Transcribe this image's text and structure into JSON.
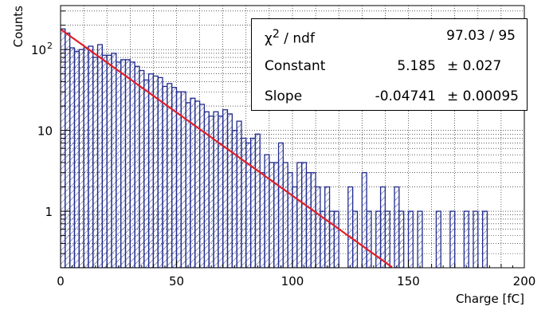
{
  "chart_data": {
    "type": "histogram",
    "xlabel": "Charge [fC]",
    "ylabel": "Counts",
    "xlim": [
      0,
      200
    ],
    "ylim": [
      0.2,
      350
    ],
    "yscale": "log",
    "grid": true,
    "bin_width": 2,
    "x_ticks": [
      "0",
      "50",
      "100",
      "150",
      "200"
    ],
    "y_ticks": [
      {
        "value": 1,
        "label": "1"
      },
      {
        "value": 10,
        "label": "10"
      },
      {
        "value": 100,
        "label": "10",
        "sup": "2"
      }
    ],
    "bins_start": 0,
    "counts": [
      180,
      160,
      105,
      95,
      100,
      105,
      110,
      80,
      115,
      85,
      85,
      90,
      70,
      75,
      75,
      70,
      62,
      55,
      42,
      50,
      47,
      45,
      35,
      38,
      34,
      30,
      30,
      22,
      25,
      23,
      21,
      17,
      15,
      17,
      15,
      18,
      16,
      10,
      13,
      8,
      7,
      8,
      9,
      3,
      5,
      4,
      4,
      7,
      4,
      3,
      2,
      4,
      4,
      3,
      3,
      2,
      1,
      2,
      1,
      1,
      0,
      0,
      2,
      1,
      0,
      3,
      1,
      0,
      1,
      2,
      1,
      0,
      2,
      1,
      0,
      1,
      0,
      1,
      0,
      0,
      0,
      1,
      0,
      0,
      1,
      0,
      0,
      1,
      0,
      1,
      0,
      1
    ],
    "fit": {
      "function": "expo",
      "constant": 5.185,
      "slope": -0.04741,
      "x_start": 0,
      "x_end": 143,
      "color": "#e0202a"
    },
    "hist_color": "#1f2a8c"
  },
  "stats": {
    "rows": [
      {
        "name_html": "χ<sup>2</sup> / ndf",
        "value": "97.03 / 95",
        "error": ""
      },
      {
        "name_html": "Constant",
        "value": "5.185",
        "error": "± 0.027"
      },
      {
        "name_html": "Slope",
        "value": "-0.04741",
        "error": "± 0.00095"
      }
    ]
  }
}
